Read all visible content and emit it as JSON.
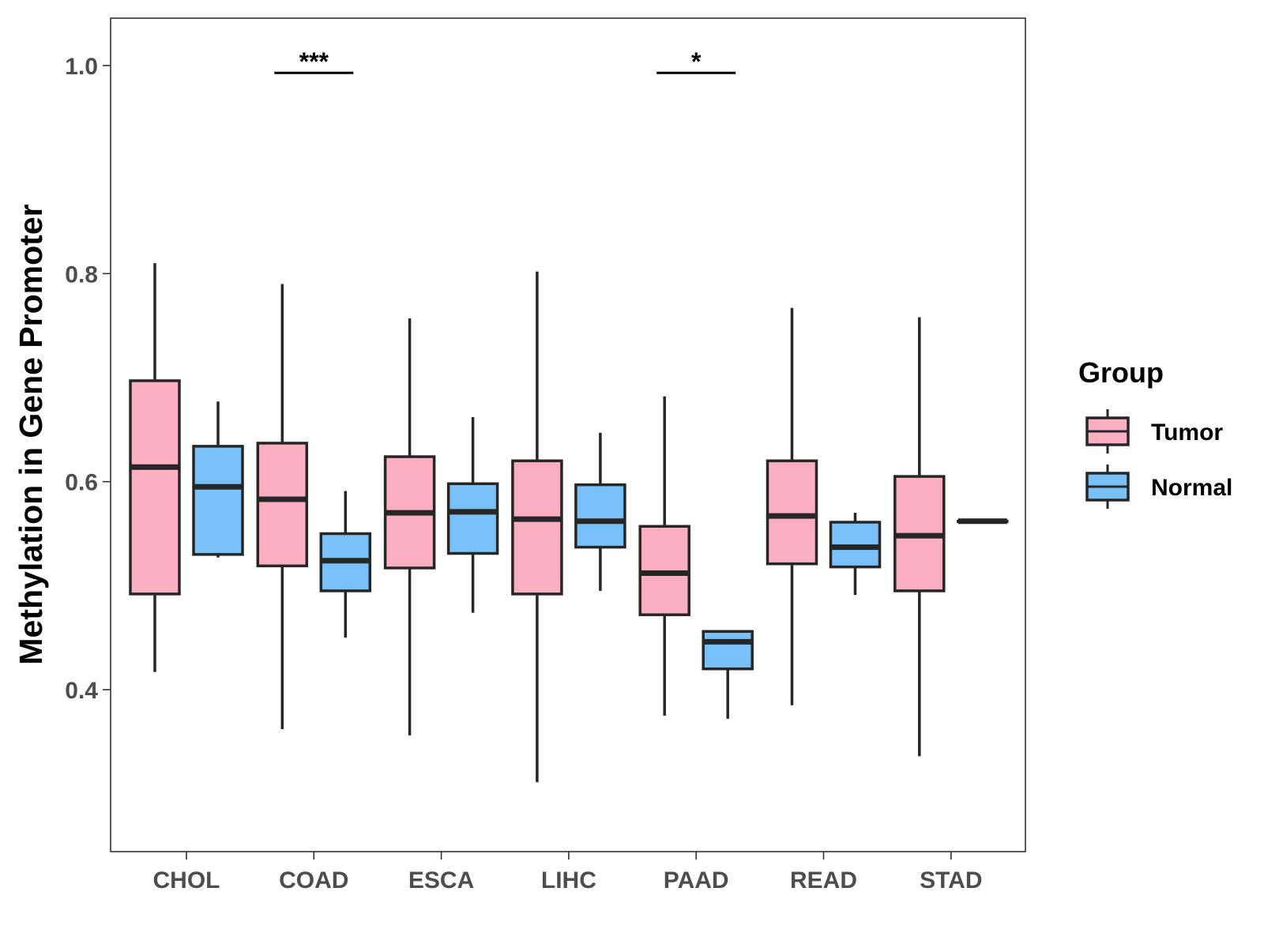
{
  "chart_data": {
    "type": "boxplot",
    "title": "",
    "xlabel": "",
    "ylabel": "Methylation in Gene Promoter",
    "ylim": [
      0.25,
      1.05
    ],
    "yticks": [
      0.4,
      0.6,
      0.8,
      1.0
    ],
    "ytick_labels": [
      "0.4",
      "0.6",
      "0.8",
      "1.0"
    ],
    "grid": false,
    "legend": {
      "title": "Group",
      "position": "right",
      "entries": [
        "Tumor",
        "Normal"
      ]
    },
    "colors": {
      "Tumor": "#fbafc1",
      "Normal": "#79c1f8",
      "outline": "#262626"
    },
    "categories": [
      "CHOL",
      "COAD",
      "ESCA",
      "LIHC",
      "PAAD",
      "READ",
      "STAD"
    ],
    "series": [
      {
        "name": "Tumor",
        "boxes": [
          {
            "whisker_low": 0.417,
            "q1": 0.492,
            "median": 0.614,
            "q3": 0.697,
            "whisker_high": 0.81
          },
          {
            "whisker_low": 0.362,
            "q1": 0.519,
            "median": 0.583,
            "q3": 0.637,
            "whisker_high": 0.79
          },
          {
            "whisker_low": 0.356,
            "q1": 0.517,
            "median": 0.57,
            "q3": 0.624,
            "whisker_high": 0.757
          },
          {
            "whisker_low": 0.311,
            "q1": 0.492,
            "median": 0.564,
            "q3": 0.62,
            "whisker_high": 0.802
          },
          {
            "whisker_low": 0.375,
            "q1": 0.472,
            "median": 0.512,
            "q3": 0.557,
            "whisker_high": 0.682
          },
          {
            "whisker_low": 0.385,
            "q1": 0.521,
            "median": 0.567,
            "q3": 0.62,
            "whisker_high": 0.767
          },
          {
            "whisker_low": 0.336,
            "q1": 0.495,
            "median": 0.548,
            "q3": 0.605,
            "whisker_high": 0.758
          }
        ]
      },
      {
        "name": "Normal",
        "boxes": [
          {
            "whisker_low": 0.527,
            "q1": 0.53,
            "median": 0.595,
            "q3": 0.634,
            "whisker_high": 0.677
          },
          {
            "whisker_low": 0.45,
            "q1": 0.495,
            "median": 0.524,
            "q3": 0.55,
            "whisker_high": 0.591
          },
          {
            "whisker_low": 0.474,
            "q1": 0.531,
            "median": 0.571,
            "q3": 0.598,
            "whisker_high": 0.662
          },
          {
            "whisker_low": 0.495,
            "q1": 0.537,
            "median": 0.562,
            "q3": 0.597,
            "whisker_high": 0.647
          },
          {
            "whisker_low": 0.372,
            "q1": 0.42,
            "median": 0.446,
            "q3": 0.456,
            "whisker_high": 0.456
          },
          {
            "whisker_low": 0.491,
            "q1": 0.518,
            "median": 0.537,
            "q3": 0.561,
            "whisker_high": 0.57
          },
          {
            "whisker_low": 0.562,
            "q1": 0.562,
            "median": 0.562,
            "q3": 0.562,
            "whisker_high": 0.562
          }
        ]
      }
    ],
    "annotations": [
      {
        "category": "COAD",
        "label": "***",
        "y": 0.993
      },
      {
        "category": "PAAD",
        "label": "*",
        "y": 0.993
      }
    ]
  }
}
